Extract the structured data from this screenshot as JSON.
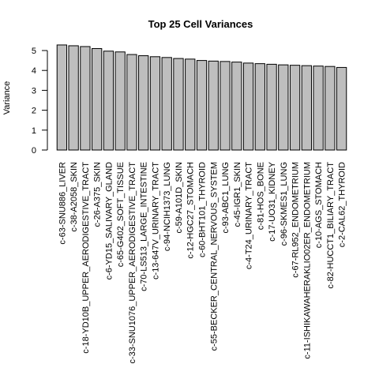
{
  "chart_data": {
    "type": "bar",
    "title": "Top 25 Cell Variances",
    "xlabel": "",
    "ylabel": "Variance",
    "ylim": [
      0,
      5
    ],
    "yticks": [
      0,
      1,
      2,
      3,
      4,
      5
    ],
    "grid": false,
    "legend": "none",
    "bar_color": "#bebebe",
    "categories": [
      "c-63-SNU886_LIVER",
      "c-38-A2058_SKIN",
      "c-18-YD10B_UPPER_AERODIGESTIVE_TRACT",
      "c-26-A375_SKIN",
      "c-6-YD15_SALIVARY_GLAND",
      "c-65-G402_SOFT_TISSUE",
      "c-33-SNU1076_UPPER_AERODIGESTIVE_TRACT",
      "c-70-LS513_LARGE_INTESTINE",
      "c-13-647V_URINARY_TRACT",
      "c-94-NCIH1373_LUNG",
      "c-59-A101D_SKIN",
      "c-12-HGC27_STOMACH",
      "c-60-BHT101_THYROID",
      "c-55-BECKER_CENTRAL_NERVOUS_SYSTEM",
      "c-93-ABC1_LUNG",
      "c-45-IGR1_SKIN",
      "c-4-T24_URINARY_TRACT",
      "c-81-HOS_BONE",
      "c-17-UO31_KIDNEY",
      "c-96-SKMES1_LUNG",
      "c-67-RL952_ENDOMETRIUM",
      "c-11-ISHIKAWAHERAKLIO02ER_ENDOMETRIUM",
      "c-10-AGS_STOMACH",
      "c-82-HUCCT1_BILIARY_TRACT",
      "c-2-CAL62_THYROID"
    ],
    "values": [
      5.28,
      5.24,
      5.2,
      5.1,
      4.97,
      4.93,
      4.8,
      4.74,
      4.69,
      4.65,
      4.6,
      4.57,
      4.5,
      4.47,
      4.45,
      4.42,
      4.37,
      4.34,
      4.31,
      4.28,
      4.26,
      4.24,
      4.22,
      4.2,
      4.15
    ]
  }
}
